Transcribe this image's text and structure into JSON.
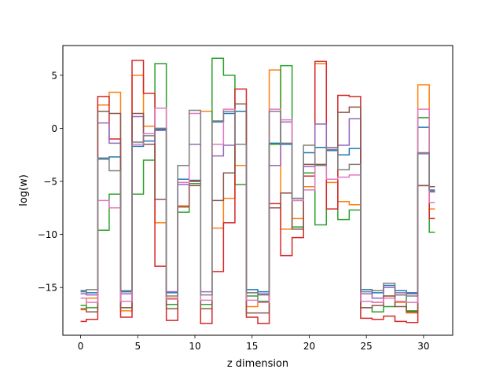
{
  "chart_data": {
    "type": "line",
    "drawstyle": "steps-mid",
    "title": "",
    "xlabel": "z dimension",
    "ylabel": "log(w)",
    "xlim": [
      -1.55,
      32.55
    ],
    "ylim": [
      -19.5,
      7.8
    ],
    "xticks": [
      0,
      5,
      10,
      15,
      20,
      25,
      30
    ],
    "yticks": [
      -15,
      -10,
      -5,
      0,
      5
    ],
    "grid": false,
    "legend": "none",
    "x": [
      0,
      1,
      2,
      3,
      4,
      5,
      6,
      7,
      8,
      9,
      10,
      11,
      12,
      13,
      14,
      15,
      16,
      17,
      18,
      19,
      20,
      21,
      22,
      23,
      24,
      25,
      26,
      27,
      28,
      29,
      30,
      31
    ],
    "series": [
      {
        "color": "#1f77b4",
        "values": [
          -15.3,
          -15.5,
          -2.9,
          -2.7,
          -15.4,
          -1.7,
          -1.2,
          -0.1,
          -15.5,
          -4.8,
          -4.9,
          1.6,
          0.6,
          1.4,
          1.6,
          -15.2,
          -15.4,
          -1.4,
          -1.5,
          -6.6,
          -2.3,
          -1.8,
          -2.1,
          -2.5,
          -1.9,
          -15.2,
          -15.5,
          -14.8,
          -15.3,
          -15.5,
          0.1,
          -5.9
        ]
      },
      {
        "color": "#ff7f0e",
        "values": [
          -17.1,
          -16.0,
          2.2,
          3.4,
          -17.2,
          5.0,
          0.2,
          -8.9,
          -16.0,
          -7.3,
          -5.2,
          1.6,
          -9.4,
          -6.6,
          -3.5,
          -16.8,
          -16.4,
          5.5,
          -9.5,
          -8.5,
          -5.5,
          6.1,
          -5.1,
          -6.9,
          -7.2,
          -16.3,
          -16.4,
          -15.8,
          -16.4,
          -17.4,
          4.1,
          -7.6
        ]
      },
      {
        "color": "#2ca02c",
        "values": [
          -16.7,
          -16.9,
          -9.6,
          -6.2,
          -16.9,
          -6.2,
          -3.0,
          6.1,
          -16.6,
          -7.9,
          -5.2,
          -16.6,
          6.6,
          5.0,
          -5.3,
          -15.8,
          -16.3,
          -1.5,
          5.9,
          -9.3,
          -4.2,
          -9.1,
          -2.0,
          -8.6,
          -7.7,
          -16.9,
          -17.3,
          -16.8,
          -15.7,
          -17.2,
          1.0,
          -9.8
        ]
      },
      {
        "color": "#d62728",
        "values": [
          -18.2,
          -18.0,
          3.0,
          -1.0,
          -17.8,
          6.4,
          3.3,
          -13.0,
          -18.1,
          -7.4,
          -5.0,
          -18.4,
          -13.5,
          -8.9,
          3.7,
          -17.8,
          -18.4,
          -7.1,
          -12.0,
          -10.3,
          -4.5,
          6.3,
          -7.6,
          3.1,
          3.0,
          -17.9,
          -18.0,
          -17.7,
          -18.2,
          -18.3,
          -5.4,
          -8.5
        ]
      },
      {
        "color": "#9467bd",
        "values": [
          -15.6,
          -15.7,
          0.5,
          -1.4,
          -15.6,
          1.1,
          -1.5,
          -0.2,
          -15.4,
          -5.3,
          -1.5,
          -15.4,
          -2.6,
          -1.6,
          -1.5,
          -15.5,
          -15.6,
          -3.5,
          0.6,
          -6.8,
          -3.6,
          0.4,
          -2.0,
          -1.6,
          0.9,
          -15.6,
          -16.0,
          -15.0,
          -15.5,
          -15.6,
          -2.4,
          -6.0
        ]
      },
      {
        "color": "#8c564b",
        "values": [
          -17.0,
          -17.3,
          1.6,
          1.4,
          -16.9,
          1.4,
          -1.5,
          -6.7,
          -17.0,
          -7.4,
          -5.4,
          -17.0,
          -6.8,
          -4.2,
          2.3,
          -17.4,
          -17.4,
          -7.5,
          -6.1,
          -9.5,
          -3.4,
          -3.4,
          -1.8,
          1.5,
          2.0,
          -16.9,
          -16.7,
          -15.8,
          -16.8,
          -17.3,
          -5.4,
          -5.5
        ]
      },
      {
        "color": "#e377c2",
        "values": [
          -16.0,
          -16.4,
          -6.8,
          -7.5,
          -16.3,
          -1.5,
          -0.5,
          1.9,
          -16.1,
          -5.1,
          1.4,
          -16.2,
          -1.5,
          1.8,
          -1.5,
          -16.2,
          -16.4,
          1.8,
          0.8,
          -6.8,
          -5.8,
          -3.5,
          -4.8,
          -4.6,
          -4.4,
          -16.3,
          -16.4,
          -16.0,
          -16.3,
          -16.4,
          1.8,
          -7.0
        ]
      },
      {
        "color": "#7f7f7f",
        "values": [
          -15.4,
          -15.2,
          -2.8,
          -4.0,
          -15.3,
          -1.3,
          -0.7,
          0.0,
          -15.8,
          -3.5,
          1.7,
          -15.7,
          0.7,
          1.6,
          -1.5,
          -15.5,
          -15.7,
          1.6,
          -1.4,
          -6.6,
          -1.6,
          -3.5,
          -1.8,
          -3.9,
          -3.4,
          -15.4,
          -15.3,
          -14.6,
          -15.7,
          -15.8,
          -2.3,
          -5.8
        ]
      }
    ]
  }
}
